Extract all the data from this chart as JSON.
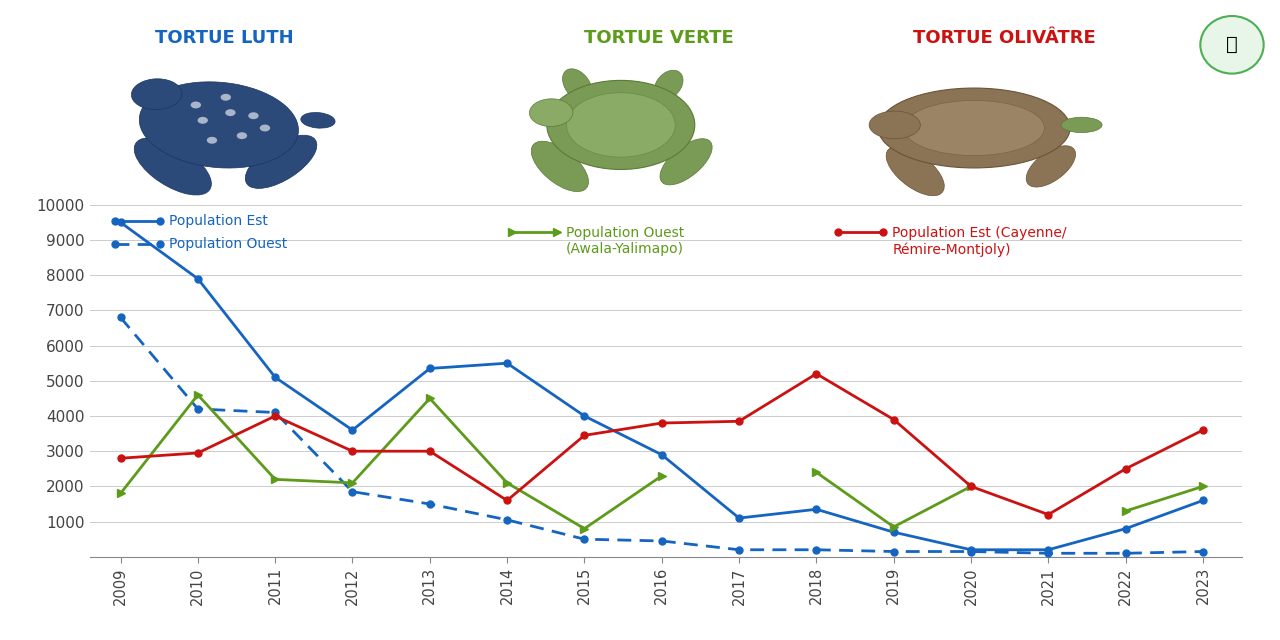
{
  "years": [
    2009,
    2010,
    2011,
    2012,
    2013,
    2014,
    2015,
    2016,
    2017,
    2018,
    2019,
    2020,
    2021,
    2022,
    2023
  ],
  "tortue_luth_est": [
    9500,
    7900,
    5100,
    3600,
    5350,
    5500,
    4000,
    2900,
    1100,
    1350,
    700,
    200,
    200,
    800,
    1600
  ],
  "tortue_luth_ouest": [
    6800,
    4200,
    4100,
    1850,
    1500,
    1050,
    500,
    450,
    200,
    200,
    150,
    150,
    100,
    100,
    150
  ],
  "tortue_verte_ouest": [
    1800,
    4600,
    2200,
    2100,
    4500,
    2100,
    800,
    2300,
    null,
    2400,
    850,
    2000,
    null,
    1300,
    2000
  ],
  "tortue_olivatre_est": [
    2800,
    2950,
    4000,
    3000,
    3000,
    1600,
    3450,
    3800,
    3850,
    5200,
    3900,
    2000,
    1200,
    2500,
    3600
  ],
  "luth_est_color": "#1565C0",
  "luth_ouest_color": "#1565C0",
  "verte_color": "#5D9B1A",
  "olivatre_color": "#CC1111",
  "luth_label_est": "Population Est",
  "luth_label_ouest": "Population Ouest",
  "verte_label": "Population Ouest\n(Awala-Yalimapo)",
  "olivatre_label": "Population Est (Cayenne/\nRémire-Montjoly)",
  "title_luth": "TORTUE LUTH",
  "title_verte": "TORTUE VERTE",
  "title_olivatre": "TORTUE OLIVÂTRE",
  "title_luth_color": "#1565C0",
  "title_verte_color": "#5D9B1A",
  "title_olivatre_color": "#CC1111",
  "ylim": [
    0,
    10000
  ],
  "yticks": [
    0,
    1000,
    2000,
    3000,
    4000,
    5000,
    6000,
    7000,
    8000,
    9000,
    10000
  ],
  "background_color": "#FFFFFF"
}
